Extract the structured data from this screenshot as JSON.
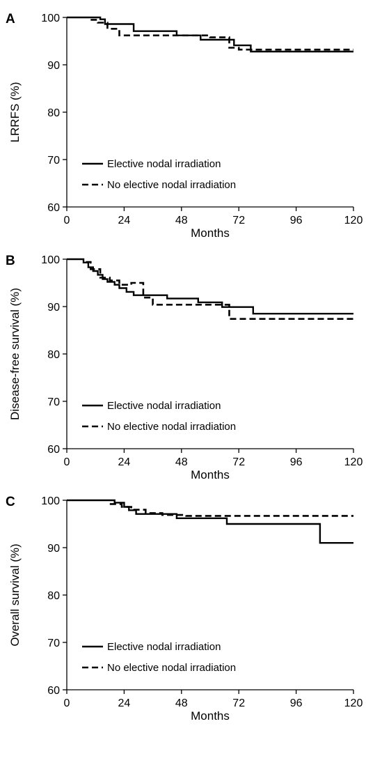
{
  "chart_data": [
    {
      "panel": "A",
      "type": "line",
      "xlabel": "Months",
      "ylabel": "LRRFS (%)",
      "xlim": [
        0,
        120
      ],
      "ylim": [
        60,
        100
      ],
      "xticks": [
        0,
        24,
        48,
        72,
        96,
        120
      ],
      "yticks": [
        60,
        70,
        80,
        90,
        100
      ],
      "grid": false,
      "legend_position": "bottom-left",
      "series": [
        {
          "name": "Elective nodal irradiation",
          "style": "solid",
          "x": [
            0,
            14,
            16,
            28,
            46,
            56,
            70,
            77,
            120
          ],
          "y": [
            100,
            99.6,
            98.6,
            97.1,
            96.2,
            95.3,
            94.1,
            92.8,
            92.8
          ]
        },
        {
          "name": "No elective nodal irradiation",
          "style": "dashed",
          "x": [
            10,
            13,
            17,
            22,
            40,
            60,
            68,
            72,
            120
          ],
          "y": [
            99.5,
            98.9,
            97.6,
            96.2,
            96.2,
            95.8,
            93.6,
            93.2,
            93.2
          ]
        }
      ]
    },
    {
      "panel": "B",
      "type": "line",
      "xlabel": "Months",
      "ylabel": "Disease-free survival (%)",
      "xlim": [
        0,
        120
      ],
      "ylim": [
        60,
        100
      ],
      "xticks": [
        0,
        24,
        48,
        72,
        96,
        120
      ],
      "yticks": [
        60,
        70,
        80,
        90,
        100
      ],
      "grid": false,
      "legend_position": "bottom-left",
      "series": [
        {
          "name": "Elective nodal irradiation",
          "style": "solid",
          "x": [
            0,
            7,
            9,
            11,
            13,
            15,
            17,
            20,
            22,
            25,
            28,
            42,
            55,
            65,
            78,
            120
          ],
          "y": [
            100,
            99.3,
            98.3,
            97.5,
            96.7,
            95.8,
            95.2,
            94.6,
            93.9,
            93.1,
            92.4,
            91.7,
            90.9,
            89.9,
            88.5,
            88.5
          ]
        },
        {
          "name": "No elective nodal irradiation",
          "style": "dashed",
          "x": [
            8,
            10,
            14,
            18,
            22,
            27,
            32,
            36,
            68,
            120
          ],
          "y": [
            99.4,
            97.9,
            96.1,
            95.5,
            94.6,
            95.0,
            91.9,
            90.4,
            87.4,
            87.4
          ]
        }
      ]
    },
    {
      "panel": "C",
      "type": "line",
      "xlabel": "Months",
      "ylabel": "Overall survival (%)",
      "xlim": [
        0,
        120
      ],
      "ylim": [
        60,
        100
      ],
      "xticks": [
        0,
        24,
        48,
        72,
        96,
        120
      ],
      "yticks": [
        60,
        70,
        80,
        90,
        100
      ],
      "grid": false,
      "legend_position": "bottom-left",
      "series": [
        {
          "name": "Elective nodal irradiation",
          "style": "solid",
          "x": [
            0,
            20,
            24,
            26,
            29,
            46,
            67,
            106,
            120
          ],
          "y": [
            100,
            99.5,
            98.6,
            97.9,
            97.1,
            96.2,
            95.0,
            91.0,
            91.0
          ]
        },
        {
          "name": "No elective nodal irradiation",
          "style": "dashed",
          "x": [
            18,
            23,
            27,
            33,
            40,
            50,
            120
          ],
          "y": [
            99.2,
            98.6,
            98.0,
            97.3,
            96.9,
            96.7,
            96.7
          ]
        }
      ]
    }
  ]
}
